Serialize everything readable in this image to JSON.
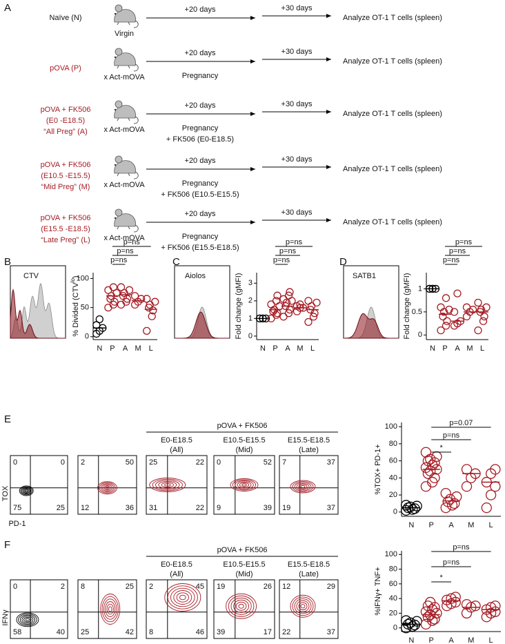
{
  "panel_labels": [
    "A",
    "B",
    "C",
    "D",
    "E",
    "F"
  ],
  "schematic": {
    "rows": [
      {
        "group": [
          "Naïve (N)"
        ],
        "mouse": "Virgin",
        "step1": "+20 days",
        "step1_note": [],
        "step2": "+30 days",
        "readout": "Analyze OT-1 T cells (spleen)"
      },
      {
        "group": [
          "pOVA (P)"
        ],
        "mouse": "x Act-mOVA",
        "step1": "+20 days",
        "step1_note": [
          "Pregnancy"
        ],
        "step2": "+30 days",
        "readout": "Analyze OT-1 T cells (spleen)"
      },
      {
        "group": [
          "pOVA + FK506",
          "(E0 -E18.5)",
          "“All Preg” (A)"
        ],
        "mouse": "x Act-mOVA",
        "step1": "+20 days",
        "step1_note": [
          "Pregnancy",
          "+ FK506 (E0-E18.5)"
        ],
        "step2": "+30 days",
        "readout": "Analyze OT-1 T cells (spleen)"
      },
      {
        "group": [
          "pOVA  + FK506",
          "(E10.5 -E15.5)",
          "“Mid Preg” (M)"
        ],
        "mouse": "x Act-mOVA",
        "step1": "+20 days",
        "step1_note": [
          "Pregnancy",
          "+ FK506 (E10.5-E15.5)"
        ],
        "step2": "+30 days",
        "readout": "Analyze OT-1 T cells (spleen)"
      },
      {
        "group": [
          "pOVA + FK506",
          "(E15.5 -E18.5)",
          "“Late Preg” (L)"
        ],
        "mouse": "x Act-mOVA",
        "step1": "+20 days",
        "step1_note": [
          "Pregnancy",
          "+ FK506 (E15.5-E18.5)"
        ],
        "step2": "+30 days",
        "readout": "Analyze OT-1 T cells (spleen)"
      }
    ]
  },
  "flow": [
    {
      "header": "pOVA + FK506",
      "x_label": "PD-1",
      "y_label": "TOX",
      "plots": [
        {
          "conditions": [],
          "quadrants": [
            0,
            0,
            75,
            25
          ]
        },
        {
          "conditions": [],
          "quadrants": [
            2,
            50,
            12,
            36
          ]
        },
        {
          "conditions": [
            "E0-E18.5",
            "(All)"
          ],
          "quadrants": [
            25,
            22,
            31,
            22
          ]
        },
        {
          "conditions": [
            "E10.5-E15.5",
            "(Mid)"
          ],
          "quadrants": [
            0,
            52,
            9,
            39
          ]
        },
        {
          "conditions": [
            "E15.5-E18.5",
            "(Late)"
          ],
          "quadrants": [
            7,
            37,
            19,
            37
          ]
        }
      ]
    },
    {
      "header": "pOVA + FK506",
      "x_label": "TNF",
      "y_label": "IFNγ",
      "plots": [
        {
          "conditions": [],
          "quadrants": [
            0,
            2,
            58,
            40
          ]
        },
        {
          "conditions": [],
          "quadrants": [
            8,
            25,
            25,
            42
          ]
        },
        {
          "conditions": [
            "E0-E18.5",
            "(All)"
          ],
          "quadrants": [
            2,
            45,
            8,
            46
          ]
        },
        {
          "conditions": [
            "E10.5-E15.5",
            "(Mid)"
          ],
          "quadrants": [
            19,
            26,
            39,
            17
          ]
        },
        {
          "conditions": [
            "E15.5-E18.5",
            "(Late)"
          ],
          "quadrants": [
            12,
            29,
            22,
            37
          ]
        }
      ]
    }
  ],
  "chart_data": [
    {
      "type": "dot",
      "inset_label": "CTV",
      "ylabel": [
        "% Divided (CTV",
        "lo",
        ")"
      ],
      "categories": [
        "N",
        "P",
        "A",
        "M",
        "L"
      ],
      "colors": [
        "#000000",
        "#a51c24",
        "#a51c24",
        "#a51c24",
        "#a51c24"
      ],
      "values": [
        [
          5,
          10,
          15,
          20,
          30
        ],
        [
          50,
          55,
          60,
          65,
          70,
          75,
          80,
          85
        ],
        [
          55,
          60,
          65,
          70,
          75,
          80,
          85
        ],
        [
          55,
          60,
          65,
          70
        ],
        [
          10,
          35,
          45,
          50,
          55,
          60,
          65
        ]
      ],
      "means": [
        15,
        70,
        72,
        62,
        47
      ],
      "ylim": [
        -5,
        110
      ],
      "yticks": [
        0,
        50,
        100
      ],
      "comparisons": [
        "p=ns",
        "p=ns",
        "p=ns"
      ]
    },
    {
      "type": "dot",
      "inset_label": "Aiolos",
      "ylabel": [
        "Fold change (gMFI)"
      ],
      "categories": [
        "N",
        "P",
        "A",
        "M",
        "L"
      ],
      "colors": [
        "#000000",
        "#a51c24",
        "#a51c24",
        "#a51c24",
        "#a51c24"
      ],
      "values": [
        [
          1,
          1,
          1,
          1,
          1
        ],
        [
          1,
          1.2,
          1.3,
          1.4,
          1.5,
          1.7,
          1.8,
          2,
          2.3
        ],
        [
          1.1,
          1.3,
          1.5,
          1.7,
          1.9,
          2,
          2.1,
          2.3,
          2.5
        ],
        [
          1.4,
          1.6,
          1.6,
          1.7,
          1.8
        ],
        [
          0.8,
          1.1,
          1.3,
          1.5,
          1.7,
          1.9,
          2
        ]
      ],
      "means": [
        1,
        1.5,
        1.7,
        1.6,
        1.5
      ],
      "ylim": [
        -0.2,
        3.6
      ],
      "yticks": [
        0,
        1,
        2,
        3
      ],
      "comparisons": [
        "p=ns",
        "p=ns",
        "p=ns"
      ]
    },
    {
      "type": "dot",
      "inset_label": "SATB1",
      "ylabel": [
        "Fold change (gMFI)"
      ],
      "categories": [
        "N",
        "P",
        "A",
        "M",
        "L"
      ],
      "colors": [
        "#000000",
        "#a51c24",
        "#a51c24",
        "#a51c24",
        "#a51c24"
      ],
      "values": [
        [
          1,
          1,
          1,
          1,
          1
        ],
        [
          0.1,
          0.2,
          0.3,
          0.4,
          0.5,
          0.55,
          0.6,
          0.8
        ],
        [
          0.2,
          0.25,
          0.3,
          0.5,
          0.9
        ],
        [
          0.4,
          0.5,
          0.55,
          0.6
        ],
        [
          0.1,
          0.3,
          0.4,
          0.5,
          0.55,
          0.6,
          0.7
        ]
      ],
      "means": [
        1,
        0.45,
        0.3,
        0.5,
        0.5
      ],
      "ylim": [
        -0.1,
        1.35
      ],
      "yticks": [
        0,
        0.5,
        1
      ],
      "comparisons": [
        "p=ns",
        "p=ns",
        "p=ns"
      ]
    },
    {
      "type": "dot",
      "ylabel": [
        "%TOX+ PD-1+"
      ],
      "categories": [
        "N",
        "P",
        "A",
        "M",
        "L"
      ],
      "colors": [
        "#000000",
        "#a51c24",
        "#a51c24",
        "#a51c24",
        "#a51c24"
      ],
      "values": [
        [
          2,
          3,
          4,
          5,
          6,
          7,
          8
        ],
        [
          30,
          35,
          40,
          45,
          48,
          50,
          52,
          55,
          58,
          60,
          62,
          65,
          70
        ],
        [
          5,
          8,
          10,
          12,
          15,
          18,
          22
        ],
        [
          30,
          40,
          45,
          50
        ],
        [
          5,
          20,
          30,
          35,
          45,
          50
        ]
      ],
      "means": [
        5,
        50,
        13,
        45,
        35
      ],
      "ylim": [
        -5,
        105
      ],
      "yticks": [
        0,
        20,
        40,
        60,
        80,
        100
      ],
      "comparisons": [
        "*",
        "p=ns",
        "p=0.07"
      ]
    },
    {
      "type": "dot",
      "ylabel": [
        "%IFNγ+ TNF+"
      ],
      "categories": [
        "N",
        "P",
        "A",
        "M",
        "L"
      ],
      "colors": [
        "#000000",
        "#a51c24",
        "#a51c24",
        "#a51c24",
        "#a51c24"
      ],
      "values": [
        [
          0,
          2,
          4,
          5,
          7,
          9,
          10
        ],
        [
          5,
          10,
          12,
          15,
          18,
          20,
          22,
          25,
          28,
          30,
          35
        ],
        [
          30,
          33,
          35,
          38,
          40,
          42
        ],
        [
          20,
          28,
          30,
          32
        ],
        [
          15,
          20,
          22,
          25,
          28,
          30
        ]
      ],
      "means": [
        5,
        18,
        37,
        28,
        25
      ],
      "ylim": [
        -5,
        105
      ],
      "yticks": [
        0,
        20,
        40,
        60,
        80,
        100
      ],
      "comparisons": [
        "*",
        "p=ns",
        "p=ns"
      ]
    }
  ]
}
